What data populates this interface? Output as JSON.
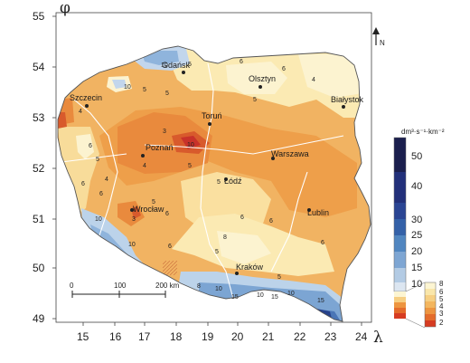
{
  "map": {
    "axes": {
      "y_symbol": "φ",
      "x_symbol": "λ",
      "y_ticks": [
        "55",
        "54",
        "53",
        "52",
        "51",
        "50",
        "49"
      ],
      "x_ticks": [
        "15",
        "16",
        "17",
        "18",
        "19",
        "20",
        "21",
        "22",
        "23",
        "24"
      ]
    },
    "north_label": "N",
    "cities": [
      {
        "id": "gdansk",
        "name": "Gdańsk"
      },
      {
        "id": "olsztyn",
        "name": "Olsztyn"
      },
      {
        "id": "szczecin",
        "name": "Szczecin"
      },
      {
        "id": "bialystok",
        "name": "Białystok"
      },
      {
        "id": "torun",
        "name": "Toruń"
      },
      {
        "id": "poznan",
        "name": "Poznań"
      },
      {
        "id": "warszawa",
        "name": "Warszawa"
      },
      {
        "id": "lodz",
        "name": "Łódź"
      },
      {
        "id": "wroclaw",
        "name": "Wrocław"
      },
      {
        "id": "lublin",
        "name": "Lublin"
      },
      {
        "id": "krakow",
        "name": "Kraków"
      }
    ],
    "isoline_labels": [
      "10",
      "5",
      "10",
      "5",
      "4",
      "5",
      "6",
      "6",
      "5",
      "4",
      "6",
      "5",
      "3",
      "4",
      "5",
      "10",
      "6",
      "4",
      "6",
      "3",
      "10",
      "5",
      "6",
      "6",
      "5",
      "8",
      "6",
      "5",
      "10",
      "6",
      "6",
      "8",
      "10",
      "15",
      "10",
      "15",
      "10",
      "15",
      "5"
    ],
    "scale_bar": {
      "labels": [
        "0",
        "100",
        "200 km"
      ]
    },
    "legend_main": {
      "unit": "dm³·s⁻¹·km⁻²",
      "labels": [
        "50",
        "40",
        "30",
        "25",
        "20",
        "15",
        "10"
      ],
      "colors": [
        "#1b1f4e",
        "#22307a",
        "#2a4594",
        "#3461a8",
        "#5186c0",
        "#7ea6d3",
        "#b3cbe4",
        "#dce6f1"
      ]
    },
    "legend_inset": {
      "labels": [
        "8",
        "6",
        "5",
        "4",
        "3",
        "2"
      ],
      "colors": [
        "#fcf5d2",
        "#f9e6aa",
        "#f6cf83",
        "#f3b65f",
        "#ed9540",
        "#e46c2b",
        "#d63c22"
      ]
    }
  }
}
